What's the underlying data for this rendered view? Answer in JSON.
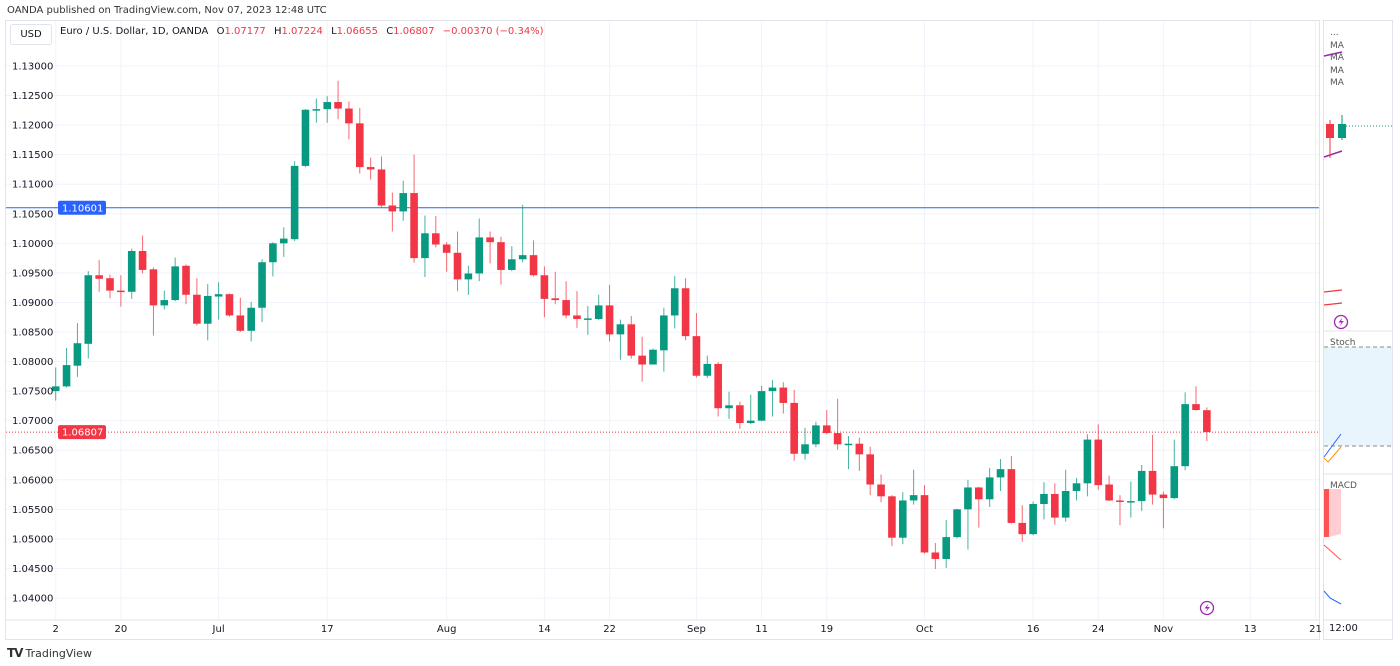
{
  "header": {
    "published": "OANDA published on TradingView.com, Nov 07, 2023 12:48 UTC"
  },
  "toolbar": {
    "currency": "USD"
  },
  "legend": {
    "symbol": "Euro / U.S. Dollar, 1D, OANDA",
    "o_label": "O",
    "o": "1.07177",
    "h_label": "H",
    "h": "1.07224",
    "l_label": "L",
    "l": "1.06655",
    "c_label": "C",
    "c": "1.06807",
    "change": "−0.00370 (−0.34%)"
  },
  "right_panel": {
    "more": "...",
    "ma_labels": [
      "MA",
      "MA",
      "MA",
      "MA"
    ],
    "stoch_label": "Stoch",
    "macd_label": "MACD",
    "time_label": "12:00"
  },
  "footer": {
    "brand": "TradingView"
  },
  "colors": {
    "up": "#089981",
    "down": "#f23645",
    "hline": "#2962ff",
    "last_price": "#f23645",
    "grid": "#f0f3fa",
    "lightning": "#9c27b0"
  },
  "icons": {
    "lightning": "lightning-bolt-icon",
    "logo": "tradingview-logo-icon"
  },
  "chart_data": {
    "type": "candlestick",
    "title": "Euro / U.S. Dollar, 1D, OANDA",
    "ylim": [
      1.038,
      1.133
    ],
    "y_ticks": [
      "1.13000",
      "1.12500",
      "1.12000",
      "1.11500",
      "1.11000",
      "1.10500",
      "1.10000",
      "1.09500",
      "1.09000",
      "1.08500",
      "1.08000",
      "1.07500",
      "1.07000",
      "1.06500",
      "1.06000",
      "1.05500",
      "1.05000",
      "1.04500",
      "1.04000"
    ],
    "x_ticks": [
      {
        "label": "2",
        "date": "2023-06-12"
      },
      {
        "label": "20",
        "date": "2023-06-20"
      },
      {
        "label": "Jul",
        "date": "2023-07-03"
      },
      {
        "label": "17",
        "date": "2023-07-17"
      },
      {
        "label": "Aug",
        "date": "2023-08-01"
      },
      {
        "label": "14",
        "date": "2023-08-14"
      },
      {
        "label": "22",
        "date": "2023-08-22"
      },
      {
        "label": "Sep",
        "date": "2023-09-01"
      },
      {
        "label": "11",
        "date": "2023-09-11"
      },
      {
        "label": "19",
        "date": "2023-09-19"
      },
      {
        "label": "Oct",
        "date": "2023-10-02"
      },
      {
        "label": "16",
        "date": "2023-10-16"
      },
      {
        "label": "24",
        "date": "2023-10-24"
      },
      {
        "label": "Nov",
        "date": "2023-11-01"
      },
      {
        "label": "13",
        "date": "2023-11-13"
      },
      {
        "label": "21",
        "date": "2023-11-21"
      }
    ],
    "horizontal_line": {
      "value": 1.10601,
      "label": "1.10601"
    },
    "last_price": {
      "value": 1.06807,
      "label": "1.06807"
    },
    "grid": true,
    "candle_fields": [
      "date",
      "open",
      "high",
      "low",
      "close"
    ],
    "candles": [
      [
        "2023-06-12",
        1.075,
        1.079,
        1.0734,
        1.0758
      ],
      [
        "2023-06-13",
        1.0758,
        1.0823,
        1.0756,
        1.0794
      ],
      [
        "2023-06-14",
        1.0793,
        1.0865,
        1.0774,
        1.0831
      ],
      [
        "2023-06-15",
        1.083,
        1.0953,
        1.0805,
        1.0946
      ],
      [
        "2023-06-16",
        1.0946,
        1.0972,
        1.0918,
        1.094
      ],
      [
        "2023-06-19",
        1.0941,
        1.0947,
        1.0907,
        1.092
      ],
      [
        "2023-06-20",
        1.092,
        1.0946,
        1.0893,
        1.0918
      ],
      [
        "2023-06-21",
        1.0918,
        1.0991,
        1.0906,
        1.0987
      ],
      [
        "2023-06-22",
        1.0987,
        1.1013,
        1.0949,
        1.0955
      ],
      [
        "2023-06-23",
        1.0956,
        1.0959,
        1.0844,
        1.0895
      ],
      [
        "2023-06-26",
        1.0895,
        1.092,
        1.0888,
        1.0904
      ],
      [
        "2023-06-27",
        1.0904,
        1.0976,
        1.0902,
        1.0961
      ],
      [
        "2023-06-28",
        1.0962,
        1.0964,
        1.0897,
        1.0913
      ],
      [
        "2023-06-29",
        1.0913,
        1.0941,
        1.0861,
        1.0864
      ],
      [
        "2023-06-30",
        1.0864,
        1.0931,
        1.0836,
        1.0911
      ],
      [
        "2023-07-03",
        1.091,
        1.0934,
        1.0871,
        1.0914
      ],
      [
        "2023-07-04",
        1.0914,
        1.0915,
        1.0876,
        1.0878
      ],
      [
        "2023-07-05",
        1.0878,
        1.0908,
        1.085,
        1.0852
      ],
      [
        "2023-07-06",
        1.0852,
        1.0901,
        1.0834,
        1.0891
      ],
      [
        "2023-07-07",
        1.0891,
        1.0973,
        1.0867,
        1.0968
      ],
      [
        "2023-07-10",
        1.0968,
        1.1002,
        1.0944,
        1.1
      ],
      [
        "2023-07-11",
        1.1,
        1.1027,
        1.0977,
        1.1008
      ],
      [
        "2023-07-12",
        1.1007,
        1.1139,
        1.1004,
        1.1131
      ],
      [
        "2023-07-13",
        1.1131,
        1.1227,
        1.1129,
        1.1226
      ],
      [
        "2023-07-14",
        1.1226,
        1.1245,
        1.1204,
        1.1227
      ],
      [
        "2023-07-17",
        1.1227,
        1.1249,
        1.1204,
        1.1239
      ],
      [
        "2023-07-18",
        1.1239,
        1.1275,
        1.121,
        1.1228
      ],
      [
        "2023-07-19",
        1.1228,
        1.124,
        1.1176,
        1.1203
      ],
      [
        "2023-07-20",
        1.1203,
        1.1229,
        1.1118,
        1.1129
      ],
      [
        "2023-07-21",
        1.1129,
        1.1145,
        1.1108,
        1.1125
      ],
      [
        "2023-07-24",
        1.1125,
        1.1147,
        1.1061,
        1.1064
      ],
      [
        "2023-07-25",
        1.1064,
        1.1086,
        1.102,
        1.1054
      ],
      [
        "2023-07-26",
        1.1054,
        1.1106,
        1.1038,
        1.1085
      ],
      [
        "2023-07-27",
        1.1085,
        1.115,
        1.0967,
        1.0975
      ],
      [
        "2023-07-28",
        1.0975,
        1.1047,
        1.0943,
        1.1017
      ],
      [
        "2023-07-31",
        1.1017,
        1.1046,
        1.0993,
        1.0998
      ],
      [
        "2023-08-01",
        1.0998,
        1.1002,
        1.0952,
        1.0984
      ],
      [
        "2023-08-02",
        1.0984,
        1.102,
        1.0919,
        1.0939
      ],
      [
        "2023-08-03",
        1.0939,
        1.0962,
        1.0913,
        1.0949
      ],
      [
        "2023-08-04",
        1.0949,
        1.1042,
        1.0936,
        1.101
      ],
      [
        "2023-08-07",
        1.101,
        1.102,
        1.0966,
        1.1002
      ],
      [
        "2023-08-08",
        1.1002,
        1.1011,
        1.093,
        1.0955
      ],
      [
        "2023-08-09",
        1.0955,
        1.0995,
        1.0953,
        1.0973
      ],
      [
        "2023-08-10",
        1.0973,
        1.1065,
        1.0968,
        1.098
      ],
      [
        "2023-08-11",
        1.098,
        1.1005,
        1.0944,
        1.0946
      ],
      [
        "2023-08-14",
        1.0946,
        1.0961,
        1.0875,
        1.0906
      ],
      [
        "2023-08-15",
        1.0907,
        1.0952,
        1.0897,
        1.0904
      ],
      [
        "2023-08-16",
        1.0904,
        1.0936,
        1.0873,
        1.0878
      ],
      [
        "2023-08-17",
        1.0878,
        1.0919,
        1.0857,
        1.0872
      ],
      [
        "2023-08-18",
        1.0872,
        1.0894,
        1.0845,
        1.0873
      ],
      [
        "2023-08-21",
        1.0872,
        1.0913,
        1.087,
        1.0895
      ],
      [
        "2023-08-22",
        1.0895,
        1.093,
        1.0834,
        1.0846
      ],
      [
        "2023-08-23",
        1.0846,
        1.0871,
        1.0803,
        1.0863
      ],
      [
        "2023-08-24",
        1.0863,
        1.0877,
        1.0805,
        1.081
      ],
      [
        "2023-08-25",
        1.081,
        1.0842,
        1.0766,
        1.0795
      ],
      [
        "2023-08-28",
        1.0795,
        1.0822,
        1.0795,
        1.082
      ],
      [
        "2023-08-29",
        1.0819,
        1.0891,
        1.0783,
        1.0878
      ],
      [
        "2023-08-30",
        1.0878,
        1.0945,
        1.0856,
        1.0924
      ],
      [
        "2023-08-31",
        1.0924,
        1.0941,
        1.0836,
        1.0843
      ],
      [
        "2023-09-01",
        1.0843,
        1.0882,
        1.0773,
        1.0776
      ],
      [
        "2023-09-04",
        1.0776,
        1.081,
        1.0772,
        1.0796
      ],
      [
        "2023-09-05",
        1.0796,
        1.0799,
        1.0707,
        1.0721
      ],
      [
        "2023-09-06",
        1.0721,
        1.0749,
        1.0703,
        1.0726
      ],
      [
        "2023-09-07",
        1.0726,
        1.0732,
        1.0686,
        1.0696
      ],
      [
        "2023-09-08",
        1.0696,
        1.0744,
        1.0694,
        1.07
      ],
      [
        "2023-09-11",
        1.07,
        1.0759,
        1.0699,
        1.075
      ],
      [
        "2023-09-12",
        1.075,
        1.0769,
        1.0707,
        1.0756
      ],
      [
        "2023-09-13",
        1.0756,
        1.0765,
        1.0712,
        1.073
      ],
      [
        "2023-09-14",
        1.073,
        1.0752,
        1.0632,
        1.0644
      ],
      [
        "2023-09-15",
        1.0644,
        1.0688,
        1.0634,
        1.066
      ],
      [
        "2023-09-18",
        1.066,
        1.0698,
        1.0655,
        1.0692
      ],
      [
        "2023-09-19",
        1.0692,
        1.0718,
        1.0677,
        1.0679
      ],
      [
        "2023-09-20",
        1.0679,
        1.0737,
        1.0651,
        1.066
      ],
      [
        "2023-09-21",
        1.066,
        1.0674,
        1.0618,
        1.0661
      ],
      [
        "2023-09-22",
        1.0661,
        1.0671,
        1.0615,
        1.0643
      ],
      [
        "2023-09-25",
        1.0643,
        1.0656,
        1.0574,
        1.0592
      ],
      [
        "2023-09-26",
        1.0592,
        1.0609,
        1.0562,
        1.0572
      ],
      [
        "2023-09-27",
        1.0572,
        1.0574,
        1.0488,
        1.0502
      ],
      [
        "2023-09-28",
        1.0502,
        1.0579,
        1.0491,
        1.0565
      ],
      [
        "2023-09-29",
        1.0565,
        1.0617,
        1.0558,
        1.0574
      ],
      [
        "2023-10-02",
        1.0574,
        1.0591,
        1.0475,
        1.0477
      ],
      [
        "2023-10-03",
        1.0477,
        1.0493,
        1.0449,
        1.0466
      ],
      [
        "2023-10-04",
        1.0466,
        1.0532,
        1.0451,
        1.0503
      ],
      [
        "2023-10-05",
        1.0503,
        1.0551,
        1.0501,
        1.055
      ],
      [
        "2023-10-06",
        1.055,
        1.06,
        1.0482,
        1.0587
      ],
      [
        "2023-10-09",
        1.0587,
        1.0588,
        1.0519,
        1.0567
      ],
      [
        "2023-10-10",
        1.0567,
        1.062,
        1.0554,
        1.0604
      ],
      [
        "2023-10-11",
        1.0604,
        1.0635,
        1.0581,
        1.0618
      ],
      [
        "2023-10-12",
        1.0618,
        1.064,
        1.0526,
        1.0527
      ],
      [
        "2023-10-13",
        1.0527,
        1.0557,
        1.0495,
        1.0508
      ],
      [
        "2023-10-16",
        1.0508,
        1.0563,
        1.0506,
        1.0559
      ],
      [
        "2023-10-17",
        1.0559,
        1.0596,
        1.0533,
        1.0576
      ],
      [
        "2023-10-18",
        1.0576,
        1.0594,
        1.0524,
        1.0536
      ],
      [
        "2023-10-19",
        1.0536,
        1.0617,
        1.0529,
        1.0581
      ],
      [
        "2023-10-20",
        1.0581,
        1.0603,
        1.0565,
        1.0594
      ],
      [
        "2023-10-23",
        1.0594,
        1.0677,
        1.0572,
        1.0668
      ],
      [
        "2023-10-24",
        1.0668,
        1.0694,
        1.0583,
        1.0591
      ],
      [
        "2023-10-25",
        1.0592,
        1.0607,
        1.0564,
        1.0565
      ],
      [
        "2023-10-26",
        1.0565,
        1.0574,
        1.0523,
        1.0563
      ],
      [
        "2023-10-27",
        1.0563,
        1.0597,
        1.0536,
        1.0564
      ],
      [
        "2023-10-30",
        1.0564,
        1.0625,
        1.0547,
        1.0615
      ],
      [
        "2023-10-31",
        1.0615,
        1.0676,
        1.0558,
        1.0575
      ],
      [
        "2023-11-01",
        1.0575,
        1.058,
        1.0518,
        1.0569
      ],
      [
        "2023-11-02",
        1.0569,
        1.0668,
        1.0567,
        1.0623
      ],
      [
        "2023-11-03",
        1.0623,
        1.0748,
        1.0616,
        1.0728
      ],
      [
        "2023-11-06",
        1.0728,
        1.0758,
        1.0717,
        1.0718
      ],
      [
        "2023-11-07",
        1.07177,
        1.07224,
        1.06655,
        1.06807
      ]
    ]
  }
}
